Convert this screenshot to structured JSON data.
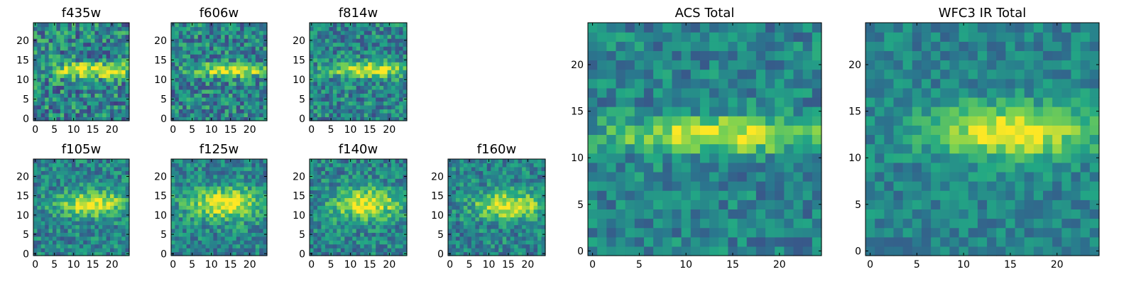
{
  "figure": {
    "description_colormap": "viridis",
    "colormap_stops": [
      "#440154",
      "#414487",
      "#2a788e",
      "#22a884",
      "#7ad151",
      "#fde725"
    ]
  },
  "chart_data": [
    {
      "type": "heatmap",
      "title": "f435w",
      "grid_size": 25,
      "x_ticks": [
        0,
        5,
        10,
        15,
        20
      ],
      "y_ticks": [
        0,
        5,
        10,
        15,
        20
      ],
      "xlim": [
        -0.5,
        24.5
      ],
      "ylim": [
        -0.5,
        24.5
      ],
      "source_center": [
        15,
        12.5
      ],
      "source_width": [
        8,
        1.3
      ],
      "noise": 0.55,
      "seed": 11
    },
    {
      "type": "heatmap",
      "title": "f606w",
      "grid_size": 25,
      "x_ticks": [
        0,
        5,
        10,
        15,
        20
      ],
      "y_ticks": [
        0,
        5,
        10,
        15,
        20
      ],
      "xlim": [
        -0.5,
        24.5
      ],
      "ylim": [
        -0.5,
        24.5
      ],
      "source_center": [
        15,
        12.5
      ],
      "source_width": [
        7,
        1.2
      ],
      "noise": 0.5,
      "seed": 23
    },
    {
      "type": "heatmap",
      "title": "f814w",
      "grid_size": 25,
      "x_ticks": [
        0,
        5,
        10,
        15,
        20
      ],
      "y_ticks": [
        0,
        5,
        10,
        15,
        20
      ],
      "xlim": [
        -0.5,
        24.5
      ],
      "ylim": [
        -0.5,
        24.5
      ],
      "source_center": [
        15,
        12.5
      ],
      "source_width": [
        7,
        1.3
      ],
      "noise": 0.45,
      "seed": 37
    },
    {
      "type": "heatmap",
      "title": "f105w",
      "grid_size": 25,
      "x_ticks": [
        0,
        5,
        10,
        15,
        20
      ],
      "y_ticks": [
        0,
        5,
        10,
        15,
        20
      ],
      "xlim": [
        -0.5,
        24.5
      ],
      "ylim": [
        -0.5,
        24.5
      ],
      "source_center": [
        15,
        13
      ],
      "source_width": [
        6,
        2.2
      ],
      "noise": 0.4,
      "seed": 41
    },
    {
      "type": "heatmap",
      "title": "f125w",
      "grid_size": 25,
      "x_ticks": [
        0,
        5,
        10,
        15,
        20
      ],
      "y_ticks": [
        0,
        5,
        10,
        15,
        20
      ],
      "xlim": [
        -0.5,
        24.5
      ],
      "ylim": [
        -0.5,
        24.5
      ],
      "source_center": [
        14,
        13
      ],
      "source_width": [
        7,
        2.8
      ],
      "noise": 0.4,
      "seed": 53
    },
    {
      "type": "heatmap",
      "title": "f140w",
      "grid_size": 25,
      "x_ticks": [
        0,
        5,
        10,
        15,
        20
      ],
      "y_ticks": [
        0,
        5,
        10,
        15,
        20
      ],
      "xlim": [
        -0.5,
        24.5
      ],
      "ylim": [
        -0.5,
        24.5
      ],
      "source_center": [
        14,
        13
      ],
      "source_width": [
        6,
        2.8
      ],
      "noise": 0.4,
      "seed": 67
    },
    {
      "type": "heatmap",
      "title": "f160w",
      "grid_size": 25,
      "x_ticks": [
        0,
        5,
        10,
        15,
        20
      ],
      "y_ticks": [
        0,
        5,
        10,
        15,
        20
      ],
      "xlim": [
        -0.5,
        24.5
      ],
      "ylim": [
        -0.5,
        24.5
      ],
      "source_center": [
        15,
        12.5
      ],
      "source_width": [
        6,
        2.4
      ],
      "noise": 0.4,
      "seed": 79
    },
    {
      "type": "heatmap",
      "title": "ACS Total",
      "grid_size": 25,
      "x_ticks": [
        0,
        5,
        10,
        15,
        20
      ],
      "y_ticks": [
        0,
        5,
        10,
        15,
        20
      ],
      "xlim": [
        -0.5,
        24.5
      ],
      "ylim": [
        -0.5,
        24.5
      ],
      "source_center": [
        14,
        12.5
      ],
      "source_width": [
        8,
        1.3
      ],
      "noise": 0.35,
      "seed": 83
    },
    {
      "type": "heatmap",
      "title": "WFC3 IR Total",
      "grid_size": 25,
      "x_ticks": [
        0,
        5,
        10,
        15,
        20
      ],
      "y_ticks": [
        0,
        5,
        10,
        15,
        20
      ],
      "xlim": [
        -0.5,
        24.5
      ],
      "ylim": [
        -0.5,
        24.5
      ],
      "source_center": [
        15,
        12.8
      ],
      "source_width": [
        6,
        2.0
      ],
      "noise": 0.28,
      "seed": 97
    }
  ]
}
